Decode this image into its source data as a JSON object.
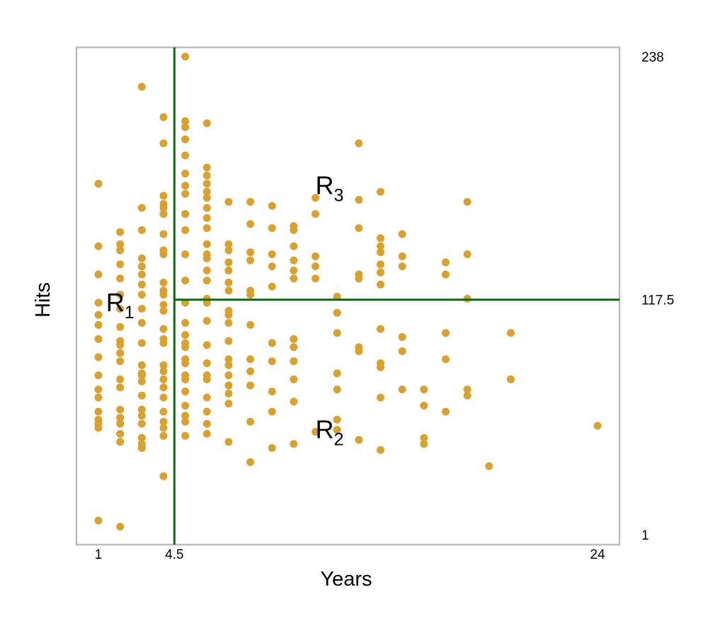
{
  "chart_data": {
    "type": "scatter",
    "xlabel": "Years",
    "ylabel": "Hits",
    "xlim": [
      1,
      24
    ],
    "ylim": [
      1,
      238
    ],
    "x_ticks": [
      {
        "value": 1,
        "label": "1"
      },
      {
        "value": 4.5,
        "label": "4.5"
      },
      {
        "value": 24,
        "label": "24"
      }
    ],
    "right_ticks": [
      {
        "value": 238,
        "label": "238"
      },
      {
        "value": 117.5,
        "label": "117.5"
      },
      {
        "value": 1,
        "label": "1"
      }
    ],
    "splits": {
      "vertical": {
        "x": 4.5,
        "y_from": 1,
        "y_to": 238
      },
      "horizontal": {
        "y": 117.5,
        "x_from": 4.5,
        "x_to": 24
      }
    },
    "regions": [
      {
        "main": "R",
        "sub": "1",
        "x": 1.35,
        "y": 116
      },
      {
        "main": "R",
        "sub": "2",
        "x": 11.0,
        "y": 53
      },
      {
        "main": "R",
        "sub": "3",
        "x": 11.0,
        "y": 174
      }
    ],
    "colors": {
      "points": "#daa22c",
      "split_lines": "#0b6b0b",
      "frame": "#bdbdbd"
    },
    "points": [
      [
        1,
        175
      ],
      [
        1,
        144
      ],
      [
        1,
        130
      ],
      [
        1,
        116
      ],
      [
        1,
        110
      ],
      [
        1,
        105
      ],
      [
        1,
        98
      ],
      [
        1,
        89
      ],
      [
        1,
        80
      ],
      [
        1,
        73
      ],
      [
        1,
        69
      ],
      [
        1,
        62
      ],
      [
        1,
        58
      ],
      [
        1,
        56
      ],
      [
        1,
        54
      ],
      [
        1,
        8
      ],
      [
        2,
        151
      ],
      [
        2,
        145
      ],
      [
        2,
        142
      ],
      [
        2,
        135
      ],
      [
        2,
        128
      ],
      [
        2,
        120
      ],
      [
        2,
        113
      ],
      [
        2,
        104
      ],
      [
        2,
        97
      ],
      [
        2,
        95
      ],
      [
        2,
        91
      ],
      [
        2,
        87
      ],
      [
        2,
        78
      ],
      [
        2,
        74
      ],
      [
        2,
        63
      ],
      [
        2,
        59
      ],
      [
        2,
        56
      ],
      [
        2,
        51
      ],
      [
        2,
        47
      ],
      [
        2,
        5
      ],
      [
        3,
        223
      ],
      [
        3,
        163
      ],
      [
        3,
        152
      ],
      [
        3,
        138
      ],
      [
        3,
        134
      ],
      [
        3,
        130
      ],
      [
        3,
        125
      ],
      [
        3,
        120
      ],
      [
        3,
        113
      ],
      [
        3,
        106
      ],
      [
        3,
        96
      ],
      [
        3,
        85
      ],
      [
        3,
        81
      ],
      [
        3,
        80
      ],
      [
        3,
        77
      ],
      [
        3,
        70
      ],
      [
        3,
        63
      ],
      [
        3,
        60
      ],
      [
        3,
        56
      ],
      [
        3,
        49
      ],
      [
        3,
        46
      ],
      [
        3,
        44
      ],
      [
        4,
        208
      ],
      [
        4,
        195
      ],
      [
        4,
        169
      ],
      [
        4,
        165
      ],
      [
        4,
        163
      ],
      [
        4,
        160
      ],
      [
        4,
        150
      ],
      [
        4,
        142
      ],
      [
        4,
        140
      ],
      [
        4,
        126
      ],
      [
        4,
        122
      ],
      [
        4,
        120
      ],
      [
        4,
        115
      ],
      [
        4,
        112
      ],
      [
        4,
        103
      ],
      [
        4,
        98
      ],
      [
        4,
        96
      ],
      [
        4,
        85
      ],
      [
        4,
        82
      ],
      [
        4,
        78
      ],
      [
        4,
        74
      ],
      [
        4,
        69
      ],
      [
        4,
        62
      ],
      [
        4,
        57
      ],
      [
        4,
        54
      ],
      [
        4,
        50
      ],
      [
        4,
        30
      ],
      [
        5,
        238
      ],
      [
        5,
        206
      ],
      [
        5,
        203
      ],
      [
        5,
        197
      ],
      [
        5,
        189
      ],
      [
        5,
        180
      ],
      [
        5,
        174
      ],
      [
        5,
        170
      ],
      [
        5,
        160
      ],
      [
        5,
        152
      ],
      [
        5,
        140
      ],
      [
        5,
        127
      ],
      [
        5,
        116
      ],
      [
        5,
        106
      ],
      [
        5,
        100
      ],
      [
        5,
        96
      ],
      [
        5,
        94
      ],
      [
        5,
        88
      ],
      [
        5,
        86
      ],
      [
        5,
        80
      ],
      [
        5,
        78
      ],
      [
        5,
        72
      ],
      [
        5,
        65
      ],
      [
        5,
        60
      ],
      [
        5,
        57
      ],
      [
        5,
        50
      ],
      [
        6,
        205
      ],
      [
        6,
        183
      ],
      [
        6,
        179
      ],
      [
        6,
        175
      ],
      [
        6,
        171
      ],
      [
        6,
        168
      ],
      [
        6,
        163
      ],
      [
        6,
        158
      ],
      [
        6,
        153
      ],
      [
        6,
        145
      ],
      [
        6,
        140
      ],
      [
        6,
        138
      ],
      [
        6,
        132
      ],
      [
        6,
        127
      ],
      [
        6,
        118
      ],
      [
        6,
        116
      ],
      [
        6,
        107
      ],
      [
        6,
        95
      ],
      [
        6,
        86
      ],
      [
        6,
        80
      ],
      [
        6,
        78
      ],
      [
        6,
        69
      ],
      [
        6,
        62
      ],
      [
        6,
        56
      ],
      [
        6,
        51
      ],
      [
        7,
        166
      ],
      [
        7,
        145
      ],
      [
        7,
        142
      ],
      [
        7,
        136
      ],
      [
        7,
        132
      ],
      [
        7,
        126
      ],
      [
        7,
        122
      ],
      [
        7,
        112
      ],
      [
        7,
        110
      ],
      [
        7,
        106
      ],
      [
        7,
        97
      ],
      [
        7,
        88
      ],
      [
        7,
        85
      ],
      [
        7,
        80
      ],
      [
        7,
        75
      ],
      [
        7,
        71
      ],
      [
        7,
        66
      ],
      [
        7,
        47
      ],
      [
        8,
        166
      ],
      [
        8,
        155
      ],
      [
        8,
        141
      ],
      [
        8,
        137
      ],
      [
        8,
        122
      ],
      [
        8,
        120
      ],
      [
        8,
        105
      ],
      [
        8,
        88
      ],
      [
        8,
        82
      ],
      [
        8,
        75
      ],
      [
        8,
        57
      ],
      [
        8,
        37
      ],
      [
        9,
        164
      ],
      [
        9,
        153
      ],
      [
        9,
        140
      ],
      [
        9,
        134
      ],
      [
        9,
        124
      ],
      [
        9,
        96
      ],
      [
        9,
        87
      ],
      [
        9,
        72
      ],
      [
        9,
        62
      ],
      [
        9,
        44
      ],
      [
        10,
        154
      ],
      [
        10,
        152
      ],
      [
        10,
        144
      ],
      [
        10,
        137
      ],
      [
        10,
        132
      ],
      [
        10,
        128
      ],
      [
        10,
        98
      ],
      [
        10,
        94
      ],
      [
        10,
        87
      ],
      [
        10,
        78
      ],
      [
        10,
        67
      ],
      [
        10,
        46
      ],
      [
        11,
        168
      ],
      [
        11,
        160
      ],
      [
        11,
        139
      ],
      [
        11,
        134
      ],
      [
        11,
        128
      ],
      [
        11,
        52
      ],
      [
        12,
        119
      ],
      [
        12,
        111
      ],
      [
        12,
        101
      ],
      [
        12,
        81
      ],
      [
        12,
        73
      ],
      [
        12,
        58
      ],
      [
        12,
        53
      ],
      [
        13,
        195
      ],
      [
        13,
        167
      ],
      [
        13,
        153
      ],
      [
        13,
        130
      ],
      [
        13,
        128
      ],
      [
        13,
        94
      ],
      [
        13,
        92
      ],
      [
        13,
        48
      ],
      [
        14,
        171
      ],
      [
        14,
        148
      ],
      [
        14,
        144
      ],
      [
        14,
        141
      ],
      [
        14,
        135
      ],
      [
        14,
        131
      ],
      [
        14,
        125
      ],
      [
        14,
        103
      ],
      [
        14,
        86
      ],
      [
        14,
        84
      ],
      [
        14,
        69
      ],
      [
        14,
        43
      ],
      [
        15,
        150
      ],
      [
        15,
        139
      ],
      [
        15,
        134
      ],
      [
        15,
        99
      ],
      [
        15,
        92
      ],
      [
        15,
        73
      ],
      [
        16,
        73
      ],
      [
        16,
        65
      ],
      [
        16,
        49
      ],
      [
        16,
        46
      ],
      [
        17,
        136
      ],
      [
        17,
        130
      ],
      [
        17,
        101
      ],
      [
        17,
        88
      ],
      [
        17,
        62
      ],
      [
        18,
        166
      ],
      [
        18,
        140
      ],
      [
        18,
        118
      ],
      [
        18,
        73
      ],
      [
        18,
        70
      ],
      [
        19,
        35
      ],
      [
        20,
        101
      ],
      [
        20,
        78
      ],
      [
        24,
        55
      ]
    ]
  }
}
